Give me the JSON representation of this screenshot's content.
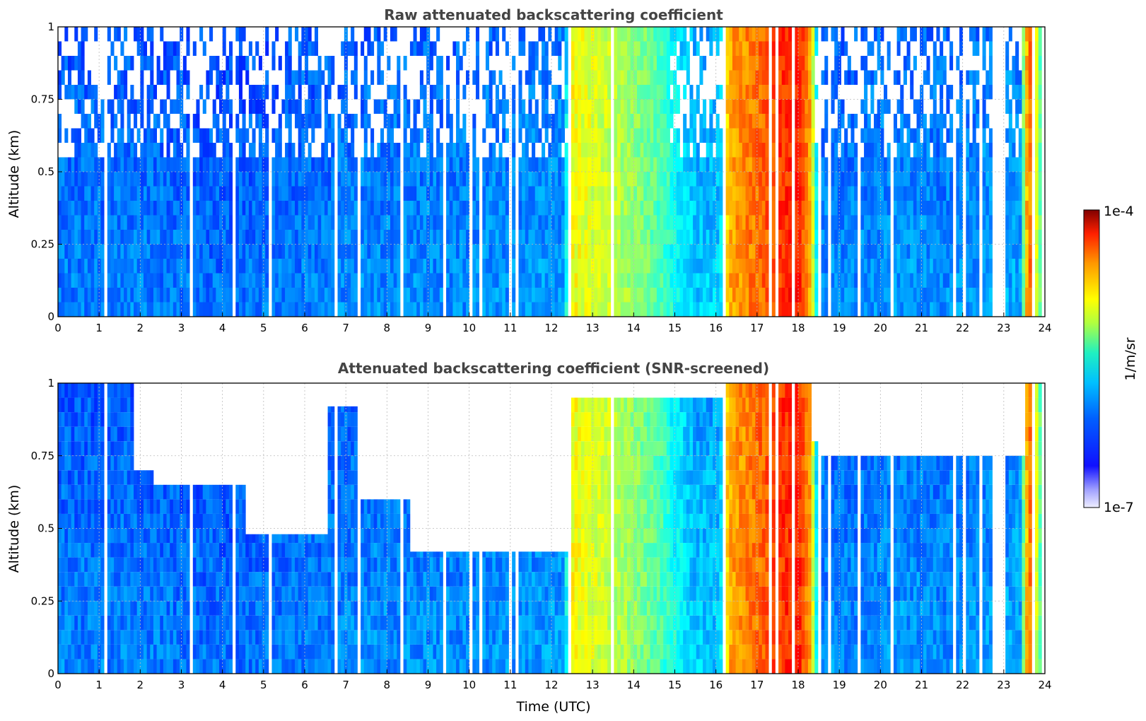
{
  "chart_data": [
    {
      "type": "heatmap",
      "title": "Raw attenuated backscattering coefficient",
      "xlabel": "",
      "ylabel": "Altitude (km)",
      "xlim": [
        0,
        24
      ],
      "ylim": [
        0,
        1
      ],
      "x_ticks": [
        "0",
        "1",
        "2",
        "3",
        "4",
        "5",
        "6",
        "7",
        "8",
        "9",
        "10",
        "11",
        "12",
        "13",
        "14",
        "15",
        "16",
        "17",
        "18",
        "19",
        "20",
        "21",
        "22",
        "23",
        "24"
      ],
      "y_ticks": [
        "0",
        "0.25",
        "0.5",
        "0.75",
        "1"
      ],
      "grid": true,
      "screened": false
    },
    {
      "type": "heatmap",
      "title": "Attenuated backscattering coefficient (SNR-screened)",
      "xlabel": "Time (UTC)",
      "ylabel": "Altitude (km)",
      "xlim": [
        0,
        24
      ],
      "ylim": [
        0,
        1
      ],
      "x_ticks": [
        "0",
        "1",
        "2",
        "3",
        "4",
        "5",
        "6",
        "7",
        "8",
        "9",
        "10",
        "11",
        "12",
        "13",
        "14",
        "15",
        "16",
        "17",
        "18",
        "19",
        "20",
        "21",
        "22",
        "23",
        "24"
      ],
      "y_ticks": [
        "0",
        "0.25",
        "0.5",
        "0.75",
        "1"
      ],
      "grid": true,
      "screened": true
    }
  ],
  "colorbar": {
    "label": "1/m/sr",
    "min_label": "1e-7",
    "max_label": "1e-4",
    "colormap": "jet",
    "scale": "log"
  },
  "intensity_profile": {
    "time_utc": [
      0,
      2,
      4,
      6,
      8,
      10,
      12.3,
      12.5,
      13.5,
      14.5,
      15.5,
      16.1,
      16.3,
      17.0,
      17.6,
      18.0,
      18.3,
      18.5,
      19.5,
      20.5,
      21.5,
      23.4,
      23.6,
      23.8,
      24
    ],
    "log10_beta": [
      -6.55,
      -6.55,
      -6.6,
      -6.55,
      -6.5,
      -6.5,
      -6.45,
      -5.3,
      -5.5,
      -5.8,
      -6.3,
      -6.3,
      -5.0,
      -4.8,
      -4.6,
      -4.5,
      -5.0,
      -6.5,
      -6.5,
      -6.45,
      -6.5,
      -6.4,
      -4.7,
      -5.4,
      -6.4
    ]
  }
}
